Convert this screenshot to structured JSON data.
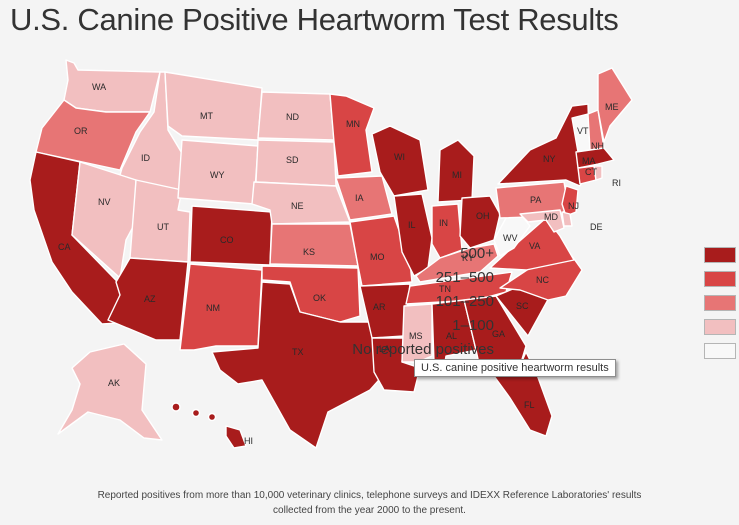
{
  "title": "U.S. Canine Positive Heartworm Test Results",
  "legend": [
    {
      "label": "500+",
      "color": "#a81c1c"
    },
    {
      "label": "251–500",
      "color": "#d84545"
    },
    {
      "label": "101–250",
      "color": "#e77575"
    },
    {
      "label": "1–100",
      "color": "#f2bfc0"
    },
    {
      "label": "No reported positives",
      "color": "#f8f8f8"
    }
  ],
  "tooltip": "U.S. canine positive heartworm results",
  "footnote_line1": "Reported positives from more than 10,000 veterinary clinics, telephone surveys and IDEXX Reference Laboratories' results",
  "footnote_line2": "collected from the year 2000 to the present.",
  "states": {
    "WA": {
      "label": "WA",
      "category": "1–100"
    },
    "OR": {
      "label": "OR",
      "category": "101–250"
    },
    "CA": {
      "label": "CA",
      "category": "500+"
    },
    "ID": {
      "label": "ID",
      "category": "1–100"
    },
    "NV": {
      "label": "NV",
      "category": "1–100"
    },
    "UT": {
      "label": "UT",
      "category": "1–100"
    },
    "AZ": {
      "label": "AZ",
      "category": "500+"
    },
    "MT": {
      "label": "MT",
      "category": "1–100"
    },
    "WY": {
      "label": "WY",
      "category": "1–100"
    },
    "CO": {
      "label": "CO",
      "category": "500+"
    },
    "NM": {
      "label": "NM",
      "category": "251–500"
    },
    "ND": {
      "label": "ND",
      "category": "1–100"
    },
    "SD": {
      "label": "SD",
      "category": "1–100"
    },
    "NE": {
      "label": "NE",
      "category": "1–100"
    },
    "KS": {
      "label": "KS",
      "category": "101–250"
    },
    "OK": {
      "label": "OK",
      "category": "251–500"
    },
    "TX": {
      "label": "TX",
      "category": "500+"
    },
    "MN": {
      "label": "MN",
      "category": "251–500"
    },
    "IA": {
      "label": "IA",
      "category": "101–250"
    },
    "MO": {
      "label": "MO",
      "category": "251–500"
    },
    "AR": {
      "label": "AR",
      "category": "500+"
    },
    "LA": {
      "label": "LA",
      "category": "500+"
    },
    "WI": {
      "label": "WI",
      "category": "500+"
    },
    "IL": {
      "label": "IL",
      "category": "500+"
    },
    "MI": {
      "label": "MI",
      "category": "500+"
    },
    "IN": {
      "label": "IN",
      "category": "251–500"
    },
    "OH": {
      "label": "OH",
      "category": "500+"
    },
    "KY": {
      "label": "KY",
      "category": "101–250"
    },
    "TN": {
      "label": "TN",
      "category": "251–500"
    },
    "MS": {
      "label": "MS",
      "category": "1–100"
    },
    "AL": {
      "label": "AL",
      "category": "500+"
    },
    "GA": {
      "label": "GA",
      "category": "500+"
    },
    "FL": {
      "label": "FL",
      "category": "500+"
    },
    "SC": {
      "label": "SC",
      "category": "500+"
    },
    "NC": {
      "label": "NC",
      "category": "251–500"
    },
    "VA": {
      "label": "VA",
      "category": "251–500"
    },
    "WV": {
      "label": "WV",
      "category": "No reported positives"
    },
    "PA": {
      "label": "PA",
      "category": "101–250"
    },
    "NY": {
      "label": "NY",
      "category": "500+"
    },
    "VT": {
      "label": "VT",
      "category": "No reported positives"
    },
    "NH": {
      "label": "NH",
      "category": "101–250"
    },
    "ME": {
      "label": "ME",
      "category": "101–250"
    },
    "MA": {
      "label": "MA",
      "category": "500+"
    },
    "CT": {
      "label": "CT",
      "category": "251–500"
    },
    "RI": {
      "label": "RI",
      "category": "1–100"
    },
    "NJ": {
      "label": "NJ",
      "category": "251–500"
    },
    "DE": {
      "label": "DE",
      "category": "1–100"
    },
    "MD": {
      "label": "MD",
      "category": "1–100"
    },
    "AK": {
      "label": "AK",
      "category": "1–100"
    },
    "HI": {
      "label": "HI",
      "category": "500+"
    }
  }
}
